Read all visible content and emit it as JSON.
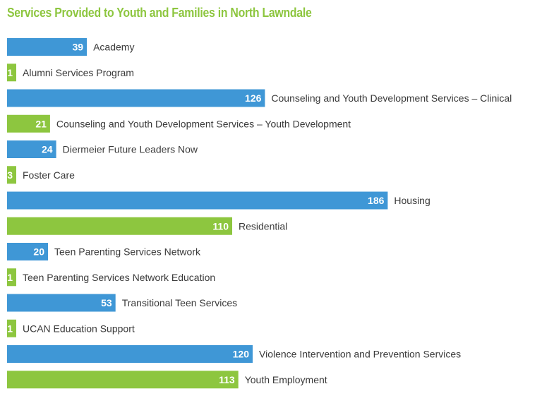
{
  "chart_data": {
    "type": "bar",
    "orientation": "horizontal",
    "title": "Services Provided to Youth and Families in North Lawndale",
    "categories": [
      "Academy",
      "Alumni Services Program",
      "Counseling and Youth Development Services – Clinical",
      "Counseling and Youth Development Services – Youth Development",
      "Diermeier Future Leaders Now",
      "Foster Care",
      "Housing",
      "Residential",
      "Teen Parenting Services Network",
      "Teen Parenting Services Network Education",
      "Transitional Teen Services",
      "UCAN Education Support",
      "Violence Intervention and Prevention Services",
      "Youth Employment"
    ],
    "values": [
      39,
      1,
      126,
      21,
      24,
      3,
      186,
      110,
      20,
      1,
      53,
      1,
      120,
      113
    ],
    "colors": [
      "#3f97d6",
      "#8dc63f",
      "#3f97d6",
      "#8dc63f",
      "#3f97d6",
      "#8dc63f",
      "#3f97d6",
      "#8dc63f",
      "#3f97d6",
      "#8dc63f",
      "#3f97d6",
      "#8dc63f",
      "#3f97d6",
      "#8dc63f"
    ],
    "title_color": "#8dc63f",
    "grid": false,
    "legend": "none",
    "data_labels": "inside-end"
  }
}
